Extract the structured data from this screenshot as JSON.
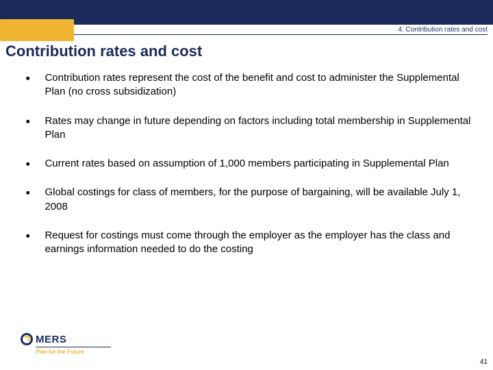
{
  "header": {
    "breadcrumb": "4. Contribution rates and cost",
    "title": "Contribution rates and cost",
    "top_bar_color": "#1a2a5c",
    "accent_color": "#f0b433"
  },
  "bullets": [
    "Contribution rates represent the cost of the benefit and cost to administer the Supplemental Plan (no cross subsidization)",
    "Rates may change in future depending on factors including total membership in Supplemental Plan",
    "Current rates based on assumption of 1,000 members participating in Supplemental Plan",
    "Global costings for class of members, for the purpose of bargaining, will be available July 1, 2008",
    "Request for costings must come through the employer as the employer has the class and earnings information needed to do the costing"
  ],
  "footer": {
    "logo_text": "MERS",
    "tagline": "Plan for the Future",
    "page_number": "41"
  },
  "styles": {
    "title_color": "#1a2a5c",
    "body_fontsize": 15,
    "title_fontsize": 22,
    "breadcrumb_fontsize": 10
  }
}
